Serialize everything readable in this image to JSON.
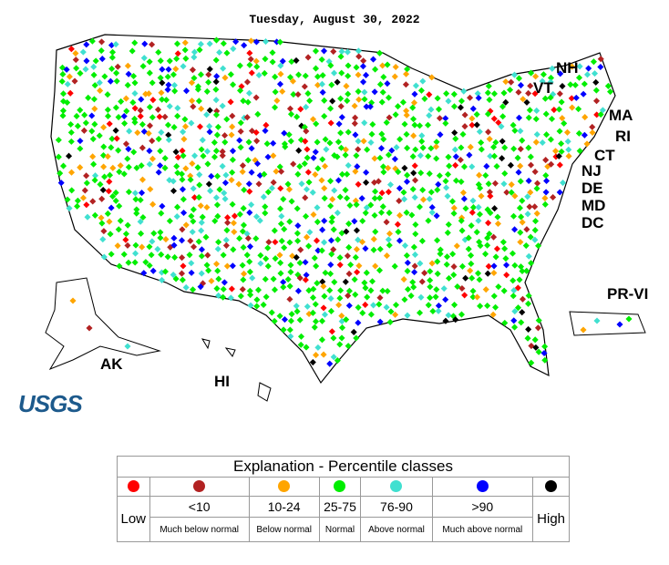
{
  "title": "Tuesday, August 30, 2022",
  "map_labels": [
    "NH",
    "VT",
    "MA",
    "RI",
    "CT",
    "NJ",
    "DE",
    "MD",
    "DC",
    "PR-VI",
    "AK",
    "HI"
  ],
  "logo": "USGS",
  "legend": {
    "title": "Explanation - Percentile classes",
    "classes": [
      {
        "color": "#ff0000",
        "label": "Low"
      },
      {
        "color": "#b22222",
        "range": "<10",
        "description": "Much below normal"
      },
      {
        "color": "#ffa500",
        "range": "10-24",
        "description": "Below normal"
      },
      {
        "color": "#00ee00",
        "range": "25-75",
        "description": "Normal"
      },
      {
        "color": "#40e0d0",
        "range": "76-90",
        "description": "Above normal"
      },
      {
        "color": "#0000ff",
        "range": ">90",
        "description": "Much above normal"
      },
      {
        "color": "#000000",
        "label": "High"
      }
    ]
  }
}
